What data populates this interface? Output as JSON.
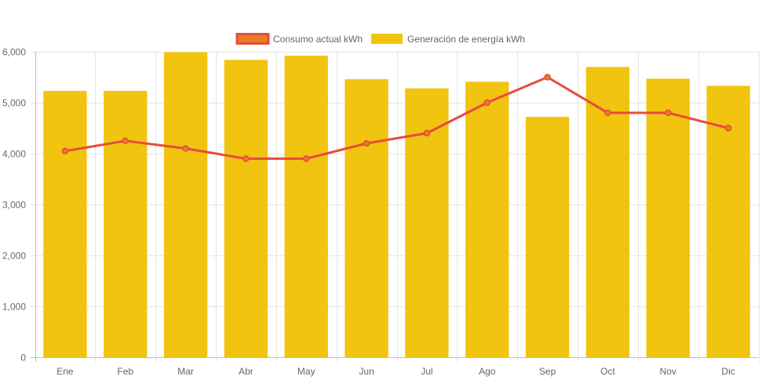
{
  "chart_data": {
    "type": "bar",
    "categories": [
      "Ene",
      "Feb",
      "Mar",
      "Abr",
      "May",
      "Jun",
      "Jul",
      "Ago",
      "Sep",
      "Oct",
      "Nov",
      "Dic"
    ],
    "series": [
      {
        "name": "Consumo actual kWh",
        "type": "line",
        "color": "#e74c3c",
        "fill": "#e67e22",
        "values": [
          4050,
          4250,
          4100,
          3900,
          3900,
          4200,
          4400,
          5000,
          5500,
          4800,
          4800,
          4500
        ]
      },
      {
        "name": "Generación de energía kWh",
        "type": "bar",
        "color": "#f1c40f",
        "values": [
          5230,
          5230,
          5990,
          5840,
          5920,
          5460,
          5280,
          5410,
          4720,
          5700,
          5470,
          5330
        ]
      }
    ],
    "ylim": [
      0,
      6000
    ],
    "yticks": [
      "0",
      "1,000",
      "2,000",
      "3,000",
      "4,000",
      "5,000",
      "6,000"
    ],
    "grid": true,
    "legend_position": "top"
  }
}
